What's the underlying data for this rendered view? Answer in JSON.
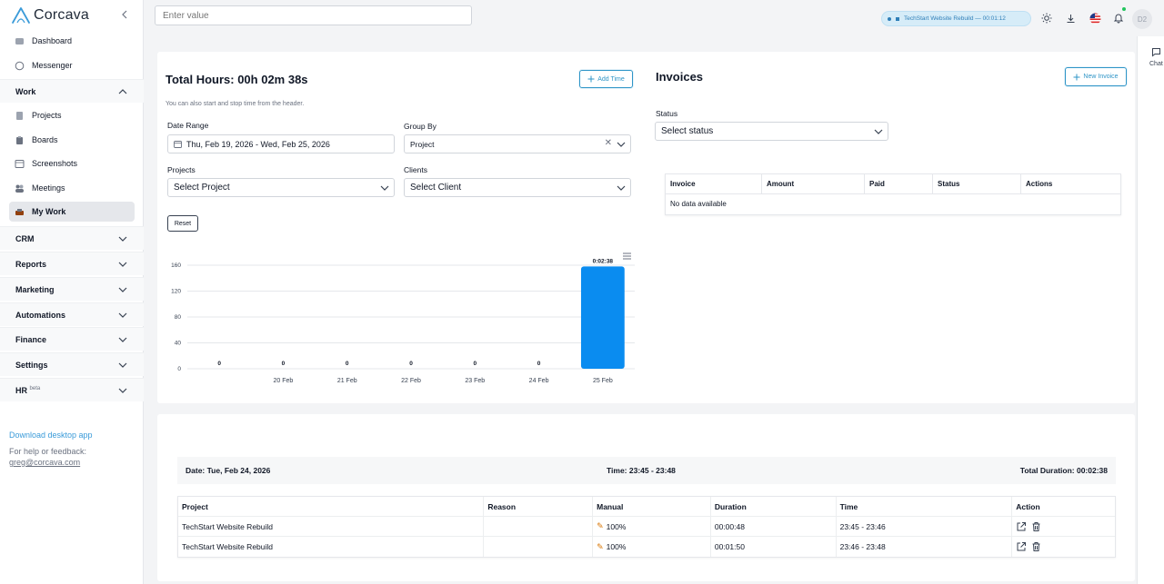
{
  "app": {
    "name": "Corcava"
  },
  "sidebar": {
    "items": [
      {
        "label": "Dashboard"
      },
      {
        "label": "Messenger"
      }
    ],
    "work": {
      "label": "Work",
      "items": [
        {
          "label": "Projects"
        },
        {
          "label": "Boards"
        },
        {
          "label": "Screenshots"
        },
        {
          "label": "Meetings"
        },
        {
          "label": "My Work"
        }
      ]
    },
    "sections": [
      {
        "label": "CRM"
      },
      {
        "label": "Reports"
      },
      {
        "label": "Marketing"
      },
      {
        "label": "Automations"
      },
      {
        "label": "Finance"
      },
      {
        "label": "Settings"
      },
      {
        "label": "HR",
        "badge": "beta"
      }
    ],
    "download": "Download desktop app",
    "help": "For help or feedback:",
    "email": "greg@corcava.com"
  },
  "header": {
    "search_placeholder": "Enter value",
    "timer": "TechStart Website Rebuild — 00:01:12",
    "avatar": "D2"
  },
  "chat": {
    "label": "Chat"
  },
  "time_panel": {
    "title": "Total Hours: 00h 02m 38s",
    "add_time": "Add Time",
    "note": "You can also start and stop time from the header.",
    "date_range_label": "Date Range",
    "date_range_value": "Thu, Feb 19, 2026 - Wed, Feb 25, 2026",
    "group_by_label": "Group By",
    "group_by_value": "Project",
    "projects_label": "Projects",
    "projects_value": "Select Project",
    "clients_label": "Clients",
    "clients_value": "Select Client",
    "reset": "Reset"
  },
  "chart_data": {
    "type": "bar",
    "categories": [
      "",
      "20 Feb",
      "21 Feb",
      "22 Feb",
      "23 Feb",
      "24 Feb",
      "25 Feb"
    ],
    "values": [
      0,
      0,
      0,
      0,
      0,
      0,
      158
    ],
    "data_labels": [
      "0",
      "0",
      "0",
      "0",
      "0",
      "0",
      "0:02:38"
    ],
    "yticks": [
      0,
      40,
      80,
      120,
      160
    ],
    "ylim": [
      0,
      160
    ],
    "color": "#0a8cf0",
    "grid": true
  },
  "invoices": {
    "title": "Invoices",
    "new_invoice": "New Invoice",
    "status_label": "Status",
    "status_placeholder": "Select status",
    "columns": [
      "Invoice",
      "Amount",
      "Paid",
      "Status",
      "Actions"
    ],
    "empty": "No data available"
  },
  "log": {
    "date": "Date: Tue, Feb 24, 2026",
    "time": "Time: 23:45 - 23:48",
    "total": "Total Duration: 00:02:38",
    "columns": [
      "Project",
      "Reason",
      "Manual",
      "Duration",
      "Time",
      "Action"
    ],
    "rows": [
      {
        "project": "TechStart Website Rebuild",
        "reason": "",
        "manual": "100%",
        "duration": "00:00:48",
        "time": "23:45 - 23:46"
      },
      {
        "project": "TechStart Website Rebuild",
        "reason": "",
        "manual": "100%",
        "duration": "00:01:50",
        "time": "23:46 - 23:48"
      }
    ]
  }
}
